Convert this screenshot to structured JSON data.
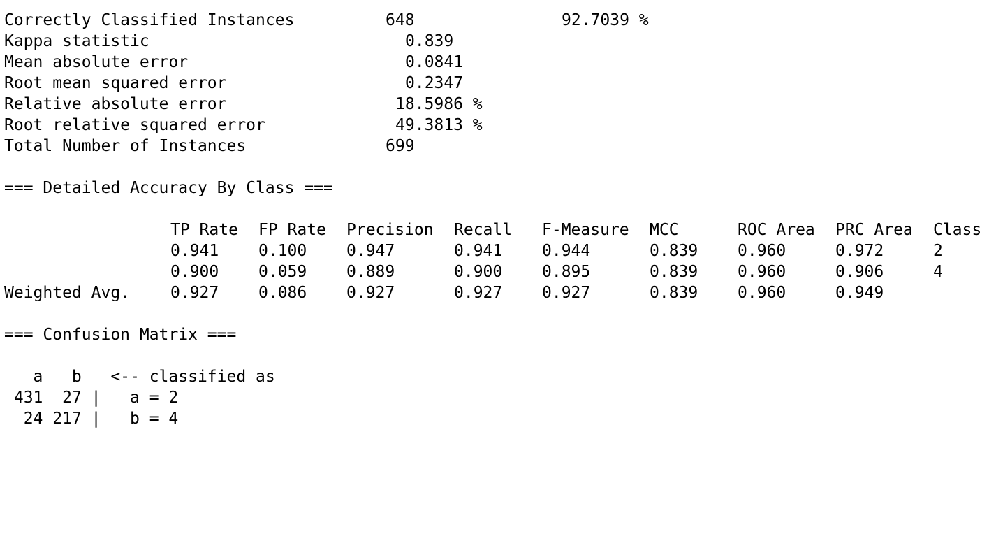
{
  "summary": {
    "correct_label": "Correctly Classified Instances",
    "correct_count": "648",
    "correct_pct": "92.7039 %",
    "kappa_label": "Kappa statistic",
    "kappa_value": "0.839",
    "mae_label": "Mean absolute error",
    "mae_value": "0.0841",
    "rmse_label": "Root mean squared error",
    "rmse_value": "0.2347",
    "rae_label": "Relative absolute error",
    "rae_value": "18.5986 %",
    "rrse_label": "Root relative squared error",
    "rrse_value": "49.3813 %",
    "total_label": "Total Number of Instances",
    "total_value": "699"
  },
  "accuracy": {
    "title": "=== Detailed Accuracy By Class ===",
    "headers": [
      "TP Rate",
      "FP Rate",
      "Precision",
      "Recall",
      "F-Measure",
      "MCC",
      "ROC Area",
      "PRC Area",
      "Class"
    ],
    "rows": [
      {
        "label": "",
        "values": [
          "0.941",
          "0.100",
          "0.947",
          "0.941",
          "0.944",
          "0.839",
          "0.960",
          "0.972",
          "2"
        ]
      },
      {
        "label": "",
        "values": [
          "0.900",
          "0.059",
          "0.889",
          "0.900",
          "0.895",
          "0.839",
          "0.960",
          "0.906",
          "4"
        ]
      },
      {
        "label": "Weighted Avg.",
        "values": [
          "0.927",
          "0.086",
          "0.927",
          "0.927",
          "0.927",
          "0.839",
          "0.960",
          "0.949",
          ""
        ]
      }
    ]
  },
  "confusion": {
    "title": "=== Confusion Matrix ===",
    "header": "   a   b   <-- classified as",
    "rows": [
      " 431  27 |   a = 2",
      "  24 217 |   b = 4"
    ]
  }
}
